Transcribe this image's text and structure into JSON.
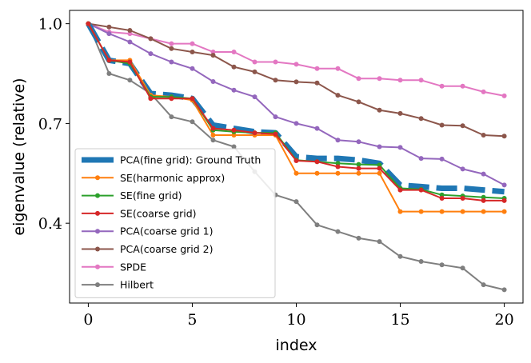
{
  "chart_data": {
    "type": "line",
    "title": "",
    "xlabel": "index",
    "ylabel": "eigenvalue (relative)",
    "xlim": [
      -0.9,
      20.9
    ],
    "ylim": [
      0.16,
      1.04
    ],
    "xticks": [
      0,
      5,
      10,
      15,
      20
    ],
    "xtick_labels": [
      "0",
      "5",
      "10",
      "15",
      "20"
    ],
    "yticks": [
      1.0,
      0.7,
      0.4
    ],
    "ytick_labels": [
      "1.0",
      "0.7",
      "0.4"
    ],
    "legend_position": "lower-left",
    "x": [
      0,
      1,
      2,
      3,
      4,
      5,
      6,
      7,
      8,
      9,
      10,
      11,
      12,
      13,
      14,
      15,
      16,
      17,
      18,
      19,
      20
    ],
    "series": [
      {
        "name": "PCA(fine grid): Ground Truth",
        "color": "#1f77b4",
        "style": "dashed-thick",
        "values": [
          1.0,
          0.89,
          0.88,
          0.79,
          0.785,
          0.775,
          0.695,
          0.685,
          0.675,
          0.672,
          0.6,
          0.595,
          0.595,
          0.59,
          0.58,
          0.515,
          0.51,
          0.505,
          0.505,
          0.5,
          0.495
        ]
      },
      {
        "name": "SE(harmonic approx)",
        "color": "#ff7f0e",
        "style": "line-marker",
        "values": [
          1.0,
          0.89,
          0.89,
          0.785,
          0.78,
          0.77,
          0.665,
          0.665,
          0.665,
          0.665,
          0.55,
          0.55,
          0.55,
          0.55,
          0.55,
          0.435,
          0.435,
          0.435,
          0.435,
          0.435,
          0.435
        ]
      },
      {
        "name": "SE(fine grid)",
        "color": "#2ca02c",
        "style": "line-marker",
        "values": [
          1.0,
          0.89,
          0.88,
          0.78,
          0.78,
          0.775,
          0.68,
          0.675,
          0.672,
          0.672,
          0.59,
          0.585,
          0.58,
          0.577,
          0.575,
          0.505,
          0.502,
          0.485,
          0.482,
          0.478,
          0.475
        ]
      },
      {
        "name": "SE(coarse grid)",
        "color": "#d62728",
        "style": "line-marker",
        "values": [
          1.0,
          0.89,
          0.885,
          0.775,
          0.775,
          0.775,
          0.685,
          0.68,
          0.672,
          0.668,
          0.588,
          0.585,
          0.57,
          0.565,
          0.565,
          0.5,
          0.5,
          0.475,
          0.475,
          0.468,
          0.468
        ]
      },
      {
        "name": "PCA(coarse grid 1)",
        "color": "#9467bd",
        "style": "line-marker",
        "values": [
          1.0,
          0.97,
          0.945,
          0.91,
          0.885,
          0.865,
          0.826,
          0.8,
          0.78,
          0.72,
          0.7,
          0.685,
          0.65,
          0.645,
          0.63,
          0.628,
          0.595,
          0.593,
          0.563,
          0.548,
          0.515
        ]
      },
      {
        "name": "PCA(coarse grid 2)",
        "color": "#8c564b",
        "style": "line-marker",
        "values": [
          1.0,
          0.99,
          0.98,
          0.955,
          0.925,
          0.915,
          0.905,
          0.87,
          0.855,
          0.83,
          0.825,
          0.822,
          0.785,
          0.765,
          0.74,
          0.73,
          0.715,
          0.695,
          0.693,
          0.665,
          0.662
        ]
      },
      {
        "name": "SPDE",
        "color": "#e377c2",
        "style": "line-marker",
        "values": [
          1.0,
          0.975,
          0.97,
          0.955,
          0.94,
          0.94,
          0.915,
          0.915,
          0.885,
          0.885,
          0.878,
          0.865,
          0.865,
          0.835,
          0.835,
          0.83,
          0.83,
          0.812,
          0.812,
          0.795,
          0.783
        ]
      },
      {
        "name": "Hilbert",
        "color": "#7f7f7f",
        "style": "line-marker",
        "values": [
          1.0,
          0.85,
          0.83,
          0.79,
          0.72,
          0.705,
          0.65,
          0.63,
          0.555,
          0.485,
          0.465,
          0.395,
          0.375,
          0.355,
          0.345,
          0.3,
          0.285,
          0.275,
          0.265,
          0.215,
          0.2
        ]
      }
    ]
  }
}
